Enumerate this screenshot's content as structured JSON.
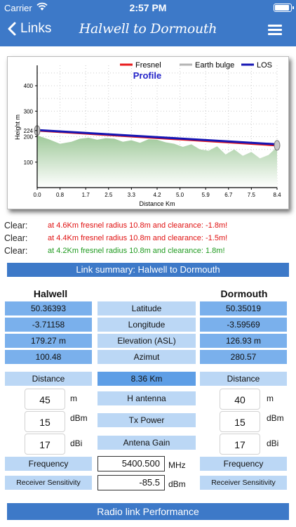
{
  "status_bar": {
    "carrier": "Carrier",
    "time": "2:57 PM",
    "battery_fraction": 0.9
  },
  "nav": {
    "back_label": "Links",
    "title": "Halwell to Dormouth"
  },
  "chart_data": {
    "type": "line",
    "title": "Profile",
    "xlabel": "Distance Km",
    "ylabel": "Height m",
    "xlim": [
      0,
      8.4
    ],
    "ylim": [
      0,
      480
    ],
    "x_ticks": [
      "0.0",
      "0.8",
      "1.7",
      "2.5",
      "3.3",
      "4.2",
      "5.0",
      "5.9",
      "6.7",
      "7.5",
      "8.4"
    ],
    "y_ticks": [
      100,
      200,
      224,
      300,
      400
    ],
    "y_tick_labels": [
      "100",
      "200",
      "224",
      "300",
      "400"
    ],
    "legend_position": "top-right",
    "series": [
      {
        "name": "Fresnel",
        "color": "#e8191b",
        "x": [
          0,
          8.4
        ],
        "y": [
          224,
          166
        ]
      },
      {
        "name": "Earth bulge",
        "color": "#b4b4b4",
        "x": [
          0,
          8.4
        ],
        "y": [
          0,
          0
        ]
      },
      {
        "name": "LOS",
        "color": "#1515b4",
        "x": [
          0,
          8.4
        ],
        "y": [
          226,
          170
        ]
      }
    ],
    "terrain": {
      "color": "#9fc99a",
      "x": [
        0,
        0.4,
        0.8,
        1.2,
        1.5,
        1.8,
        2.1,
        2.4,
        2.7,
        3.0,
        3.3,
        3.6,
        3.9,
        4.2,
        4.5,
        4.8,
        5.1,
        5.4,
        5.7,
        6.0,
        6.3,
        6.6,
        6.9,
        7.2,
        7.5,
        7.8,
        8.1,
        8.4
      ],
      "y": [
        205,
        190,
        172,
        180,
        192,
        196,
        188,
        194,
        192,
        180,
        186,
        176,
        190,
        188,
        178,
        172,
        160,
        170,
        150,
        145,
        162,
        130,
        150,
        125,
        140,
        115,
        128,
        160
      ]
    }
  },
  "clearance": [
    {
      "label": "Clear:",
      "text": "at 4.6Km  fresnel radius 10.8m and clearance: -1.8m!",
      "color": "#e01010"
    },
    {
      "label": "Clear:",
      "text": "at 4.4Km  fresnel radius 10.8m and clearance: -1.5m!",
      "color": "#e01010"
    },
    {
      "label": "Clear:",
      "text": "at 4.2Km fresnel radius 10.8m and clearance: 1.8m!",
      "color": "#1f9a1f"
    }
  ],
  "summary": {
    "title": "Link summary: Halwell to Dormouth",
    "site_a": "Halwell",
    "site_b": "Dormouth",
    "rows": [
      {
        "label": "Latitude",
        "a": "50.36393",
        "b": "50.35019"
      },
      {
        "label": "Longitude",
        "a": "-3.71158",
        "b": "-3.59569"
      },
      {
        "label": "Elevation (ASL)",
        "a": "179.27 m",
        "b": "126.93 m"
      },
      {
        "label": "Azimut",
        "a": "100.48",
        "b": "280.57"
      }
    ],
    "distance_label": "Distance",
    "distance_value": "8.36 Km"
  },
  "params": {
    "antenna": {
      "label": "H antenna",
      "a": "45",
      "b": "40",
      "unit": "m"
    },
    "power": {
      "label": "Tx Power",
      "a": "15",
      "b": "15",
      "unit": "dBm"
    },
    "gain": {
      "label": "Antena Gain",
      "a": "17",
      "b": "17",
      "unit": "dBi"
    },
    "frequency": {
      "label": "Frequency",
      "value": "5400.500",
      "unit": "MHz"
    },
    "sensitivity": {
      "label": "Receiver Sensitivity",
      "value": "-85.5",
      "unit": "dBm"
    }
  },
  "performance_title": "Radio link Performance"
}
